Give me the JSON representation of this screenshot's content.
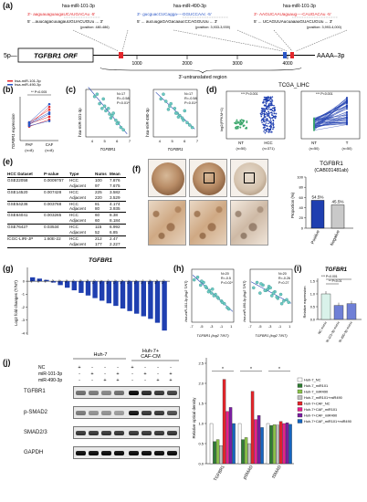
{
  "colors": {
    "mir101": "#e3262b",
    "mir490": "#2a56c6",
    "blue": "#1f3fb0",
    "green": "#3aa66b",
    "teal": "#6ccbc4",
    "pink": "#f07aa8",
    "purple": "#8a2a8e"
  },
  "panel_a": {
    "label": "(a)",
    "site1": {
      "mirna": "hsa-miR-101-3p",
      "top": "3'- aaguauaguaugaUCAUGACAu -5'",
      "bot": "5' ...auucagacuuagauUGUACUGUu ... 3'",
      "pos": "(position: 480-486)"
    },
    "site2": {
      "mirna": "hsa-miR-490-3p",
      "top": "3'- gucguacCUCagga----GGUCCAAc -5'",
      "bot": "5' ... aucuugaGAGacaaucCCAGGUUu ... 3'",
      "pos": "(position: 3,933-3,939)"
    },
    "site3": {
      "mirna": "hsa-miR-101-3p",
      "top": "3'- AAGUCAAUaguaug----CAUGACAu -5'",
      "bot": "5' ... UCAGUUAucuaaauGUACUGUu ... 3'",
      "pos": "(position: 3,993-4,000)"
    },
    "gene": "TGFBR1 ORF",
    "left": "5p—",
    "right": "AAAA–3p",
    "ticks": [
      "1000",
      "2000",
      "3000",
      "4000"
    ],
    "utr": "3'-untranslated region"
  },
  "panel_b": {
    "label": "(b)",
    "legend": [
      "hsa-miR-101-3p",
      "hsa-miR-490-3p"
    ],
    "ylabel": "TGFBR1 expression",
    "pval": "** P<0.005",
    "groups": [
      "PAF",
      "CAF"
    ],
    "ns": [
      "(n=8)",
      "(n=8)"
    ]
  },
  "panel_c": {
    "label": "(c)",
    "left": {
      "ylabel": "hsa-miR-101-3p",
      "xlabel": "TGFBR1",
      "stats": [
        "N=17",
        "R=-0.58",
        "P=0.01*"
      ]
    },
    "right": {
      "ylabel": "hsa-miR-490-3p",
      "xlabel": "TGFBR1",
      "stats": [
        "N=17",
        "R=-0.58",
        "P=0.01*"
      ]
    },
    "xticks": [
      "4",
      "5",
      "6",
      "7"
    ]
  },
  "panel_d": {
    "label": "(d)",
    "title": "TCGA_LIHC",
    "ylabel": "log2(FPKM+1)",
    "pval": "*** P<0.001",
    "left_groups": [
      "NT",
      "HCC"
    ],
    "left_ns": [
      "(n=50)",
      "(n=371)"
    ],
    "right_groups": [
      "NT",
      "T"
    ],
    "right_ns": [
      "(n=50)",
      "(n=50)"
    ]
  },
  "panel_e": {
    "label": "(e)",
    "headers": [
      "HCC Dataset",
      "P-value",
      "Type",
      "Nums",
      "Mean"
    ],
    "rows": [
      [
        "GSE22058",
        "0.0009757",
        "HCC",
        "100",
        "7.876"
      ],
      [
        "",
        "",
        "Adjacent",
        "97",
        "7.675"
      ],
      [
        "GSE14520",
        "0.007428",
        "HCC",
        "225",
        "3.582"
      ],
      [
        "",
        "",
        "Adjacent",
        "220",
        "3.529"
      ],
      [
        "GSE54236",
        "0.003768",
        "HCC",
        "81",
        "4.174"
      ],
      [
        "",
        "",
        "Adjacent",
        "80",
        "3.935"
      ],
      [
        "GSE64041",
        "0.003265",
        "HCC",
        "60",
        "8.38"
      ],
      [
        "",
        "",
        "Adjacent",
        "60",
        "8.184"
      ],
      [
        "GSE76427",
        "0.03534",
        "HCC",
        "115",
        "6.992"
      ],
      [
        "",
        "",
        "Adjacent",
        "52",
        "6.85"
      ],
      [
        "ICGC-LIRI-JP",
        "1.60E-22",
        "HCC",
        "212",
        "2.47"
      ],
      [
        "",
        "",
        "Adjacent",
        "177",
        "2.227"
      ]
    ]
  },
  "panel_f": {
    "label": "(f)",
    "title": "TGFBR1",
    "subtitle": "(CAB031481ab)",
    "ylabel": "Proportion (%)",
    "categories": [
      "Positive",
      "Negative"
    ],
    "values": [
      54.5,
      45.5
    ],
    "value_labels": [
      "54.5%",
      "45.5%"
    ],
    "yticks": [
      "0",
      "20",
      "40",
      "60",
      "80",
      "100"
    ]
  },
  "panel_g": {
    "label": "(g)",
    "title": "TGFBR1",
    "ylabel": "Log2 fold changes (T/NT)",
    "yticks": [
      "0",
      "-1",
      "-2",
      "-3",
      "-4"
    ],
    "xlabels": [
      "#1",
      "#2",
      "#3",
      "#4",
      "#5",
      "#6",
      "#7",
      "#8",
      "#9",
      "#10",
      "#11",
      "#12",
      "#13",
      "#14",
      "#15",
      "#16",
      "#17",
      "#18",
      "#19",
      "#20"
    ]
  },
  "panel_h": {
    "label": "(h)",
    "left": {
      "ylabel": "hsa-miR-101-3p (log2 T/NT)",
      "xlabel": "TGFBR1 (log2 T/NT)",
      "stats": [
        "N=20",
        "R=-0.5",
        "P=0.02*"
      ]
    },
    "right": {
      "ylabel": "hsa-miR-490-3p (log2 T/NT)",
      "xlabel": "TGFBR1 (log2 T/NT)",
      "stats": [
        "N=20",
        "R=-0.26",
        "P=0.27"
      ]
    },
    "xticks": [
      "-7",
      "-5",
      "-3",
      "-1",
      "1"
    ]
  },
  "panel_i": {
    "label": "(i)",
    "title": "TGFBR1",
    "ylabel": "Relative expression",
    "pvals": [
      "*** P<0.001",
      "** P<0.01"
    ],
    "categories": [
      "NC mimic",
      "miR-101-3p mimic",
      "miR-490-3p mimic"
    ],
    "values": [
      1.0,
      0.55,
      0.62
    ],
    "yticks": [
      "0.0",
      "0.5",
      "1.0",
      "1.5"
    ]
  },
  "panel_j": {
    "label": "(j)",
    "col_groups": [
      "Huh-7",
      "Huh-7+\nCAF-CM"
    ],
    "row_labels": [
      "NC",
      "miR-101-3p",
      "miR-490-3p"
    ],
    "lane_marks": [
      [
        "+",
        "-",
        "-",
        "-",
        "+",
        "-",
        "-",
        "-"
      ],
      [
        "-",
        "+",
        "-",
        "+",
        "-",
        "+",
        "-",
        "+"
      ],
      [
        "-",
        "-",
        "+",
        "+",
        "-",
        "-",
        "+",
        "+"
      ]
    ],
    "blots": [
      "TGFBR1",
      "p-SMAD2",
      "SMAD2/3",
      "GAPDH"
    ],
    "ylabel": "Relative optical density",
    "yticks": [
      "0.0",
      "0.5",
      "1.0",
      "1.5",
      "2.0",
      "2.5"
    ],
    "groups": [
      "TGFBR1",
      "pSMAD",
      "tSMAD"
    ],
    "legend": [
      "Huh-7_NC",
      "Huh-7_miR101",
      "Huh-7_miR490",
      "Huh-7_miR101+miR490",
      "Huh-7+CAF_NC",
      "Huh-7+CAF_miR101",
      "Huh-7+CAF_miR490",
      "Huh-7+CAF_miR101+miR490"
    ]
  },
  "chart_data": [
    {
      "type": "scatter",
      "panel": "b",
      "series": [
        {
          "name": "hsa-miR-101-3p",
          "pairs": [
            [
              1.2,
              1.7
            ],
            [
              1.1,
              2.4
            ],
            [
              1.3,
              2.2
            ],
            [
              1.0,
              1.5
            ]
          ]
        },
        {
          "name": "hsa-miR-490-3p",
          "pairs": [
            [
              1.3,
              2.6
            ],
            [
              1.15,
              1.9
            ],
            [
              1.25,
              2.0
            ],
            [
              1.05,
              1.4
            ]
          ]
        }
      ]
    },
    {
      "type": "scatter",
      "panel": "c-left",
      "x": [
        4.2,
        4.6,
        4.9,
        5.1,
        5.3,
        5.5,
        5.7,
        5.9,
        6.1,
        6.3,
        4.4,
        5.0,
        5.6,
        6.0,
        6.5,
        4.8,
        5.4
      ],
      "y": [
        0.85,
        0.7,
        0.8,
        0.55,
        0.6,
        0.4,
        0.5,
        0.35,
        0.3,
        0.2,
        0.9,
        0.65,
        0.45,
        0.28,
        0.15,
        0.6,
        0.48
      ],
      "xlim": [
        3.5,
        7
      ],
      "ylim": [
        0,
        1
      ]
    },
    {
      "type": "scatter",
      "panel": "c-right",
      "x": [
        4.1,
        4.5,
        4.8,
        5.2,
        5.4,
        5.6,
        5.8,
        6.0,
        6.2,
        6.4,
        4.3,
        4.9,
        5.5,
        5.9,
        6.6,
        4.7,
        5.3
      ],
      "y": [
        0.8,
        0.75,
        0.65,
        0.6,
        0.5,
        0.45,
        0.4,
        0.55,
        0.3,
        0.25,
        0.9,
        0.7,
        0.42,
        0.35,
        0.2,
        0.58,
        0.5
      ],
      "xlim": [
        3.5,
        7
      ],
      "ylim": [
        0,
        1
      ]
    },
    {
      "type": "bar",
      "panel": "f",
      "categories": [
        "Positive",
        "Negative"
      ],
      "values": [
        54.5,
        45.5
      ],
      "ylim": [
        0,
        100
      ]
    },
    {
      "type": "bar",
      "panel": "g",
      "categories": [
        "#1",
        "#2",
        "#3",
        "#4",
        "#5",
        "#6",
        "#7",
        "#8",
        "#9",
        "#10",
        "#11",
        "#12",
        "#13",
        "#14",
        "#15",
        "#16",
        "#17",
        "#18",
        "#19",
        "#20"
      ],
      "values": [
        0.3,
        0.2,
        0.1,
        -0.1,
        -0.3,
        -0.5,
        -0.7,
        -0.9,
        -1.1,
        -1.3,
        -1.5,
        -1.7,
        -1.9,
        -2.1,
        -2.3,
        -2.5,
        -2.7,
        -2.9,
        -3.2,
        -3.8
      ],
      "ylim": [
        -4,
        0.5
      ]
    },
    {
      "type": "scatter",
      "panel": "h-left",
      "x": [
        -6.5,
        -5.8,
        -5.2,
        -4.6,
        -4.0,
        -3.4,
        -2.8,
        -2.2,
        -1.6,
        -1.0,
        -0.4,
        0.2,
        -3.0,
        -1.8,
        -5.0,
        -2.5,
        -0.8,
        -4.2,
        0.5,
        -3.6
      ],
      "y": [
        0.6,
        0.7,
        0.4,
        0.5,
        0.3,
        0.2,
        0.25,
        0.05,
        -0.1,
        -0.2,
        -0.3,
        -0.45,
        0.1,
        -0.05,
        0.55,
        0.0,
        -0.25,
        0.35,
        -0.5,
        0.15
      ],
      "xlim": [
        -7,
        1.5
      ],
      "ylim": [
        -1,
        1
      ]
    },
    {
      "type": "scatter",
      "panel": "h-right",
      "x": [
        -6.3,
        -5.6,
        -5.0,
        -4.4,
        -3.8,
        -3.2,
        -2.6,
        -2.0,
        -1.4,
        -0.8,
        -0.2,
        0.4,
        -3.4,
        -1.6,
        -4.8,
        -2.3,
        -0.6,
        -4.0,
        0.8,
        -2.9
      ],
      "y": [
        0.3,
        0.5,
        0.1,
        0.4,
        0.2,
        0.35,
        0.0,
        0.15,
        -0.1,
        0.05,
        -0.2,
        -0.15,
        0.25,
        -0.05,
        0.45,
        0.1,
        -0.3,
        0.2,
        -0.25,
        0.3
      ],
      "xlim": [
        -7,
        1.5
      ],
      "ylim": [
        -1,
        1
      ]
    },
    {
      "type": "bar",
      "panel": "i",
      "categories": [
        "NC mimic",
        "miR-101-3p mimic",
        "miR-490-3p mimic"
      ],
      "values": [
        1.0,
        0.55,
        0.62
      ],
      "ylim": [
        0,
        1.5
      ]
    },
    {
      "type": "bar",
      "panel": "j",
      "categories": [
        "TGFBR1",
        "pSMAD",
        "tSMAD"
      ],
      "series": [
        {
          "name": "Huh-7_NC",
          "values": [
            1.0,
            1.0,
            1.0
          ]
        },
        {
          "name": "Huh-7_miR101",
          "values": [
            0.55,
            0.6,
            0.95
          ]
        },
        {
          "name": "Huh-7_miR490",
          "values": [
            0.6,
            0.65,
            0.97
          ]
        },
        {
          "name": "Huh-7_miR101+miR490",
          "values": [
            0.45,
            0.5,
            0.96
          ]
        },
        {
          "name": "Huh-7+CAF_NC",
          "values": [
            2.1,
            1.8,
            1.05
          ]
        },
        {
          "name": "Huh-7+CAF_miR101",
          "values": [
            1.3,
            1.1,
            1.0
          ]
        },
        {
          "name": "Huh-7+CAF_miR490",
          "values": [
            1.4,
            1.2,
            1.02
          ]
        },
        {
          "name": "Huh-7+CAF_miR101+miR490",
          "values": [
            1.0,
            0.9,
            0.98
          ]
        }
      ],
      "ylim": [
        0,
        2.5
      ]
    }
  ]
}
